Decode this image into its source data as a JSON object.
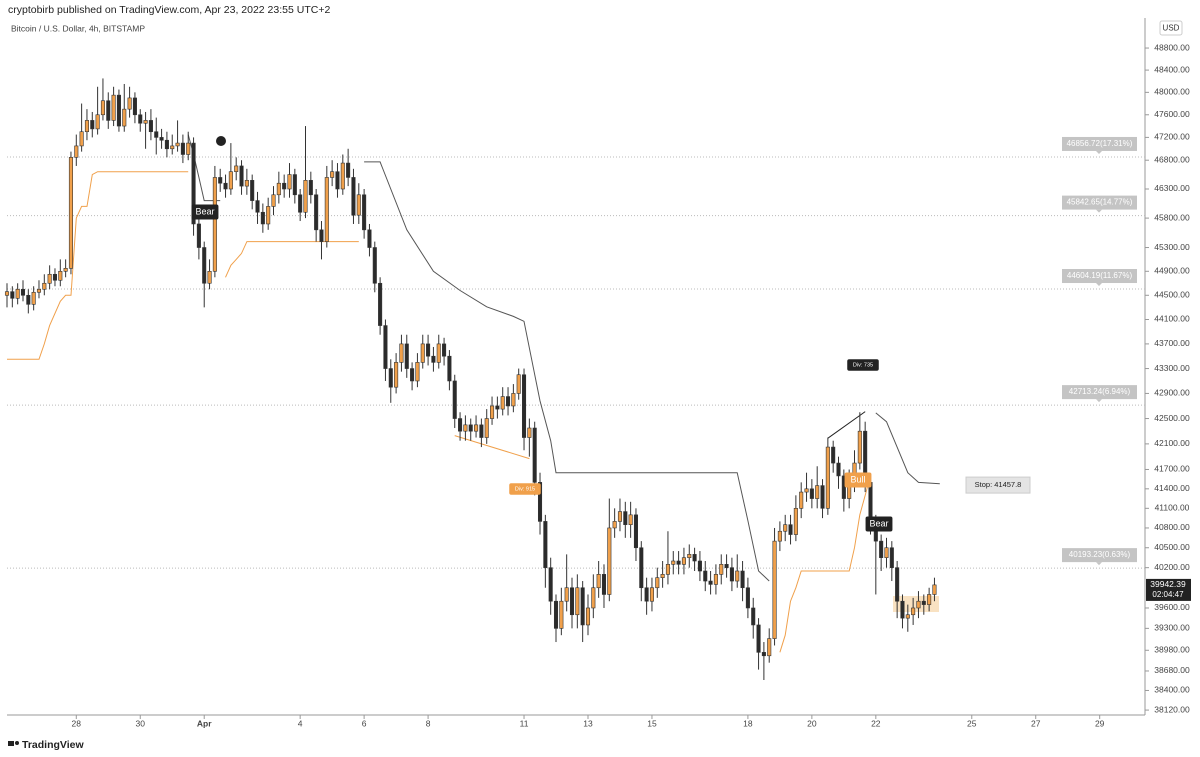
{
  "header": "cryptobirb published on TradingView.com, Apr 23, 2022 23:55 UTC+2",
  "footer": "TradingView",
  "chart_data": {
    "type": "candlestick",
    "title": "Bitcoin / U.S. Dollar, 4h, BITSTAMP",
    "currency": "USD",
    "up_color": "#f0a04b",
    "down_color": "#2b2b2b",
    "yscale": "log",
    "grid": false,
    "xlim": [
      0,
      213.5
    ],
    "xticks": [
      {
        "value": 13,
        "label": "28"
      },
      {
        "value": 25,
        "label": "30"
      },
      {
        "value": 37,
        "label": "Apr"
      },
      {
        "value": 55,
        "label": "4"
      },
      {
        "value": 67,
        "label": "6"
      },
      {
        "value": 79,
        "label": "8"
      },
      {
        "value": 97,
        "label": "11"
      },
      {
        "value": 109,
        "label": "13"
      },
      {
        "value": 121,
        "label": "15"
      },
      {
        "value": 139,
        "label": "18"
      },
      {
        "value": 151,
        "label": "20"
      },
      {
        "value": 163,
        "label": "22"
      },
      {
        "value": 181,
        "label": "25"
      },
      {
        "value": 193,
        "label": "27"
      },
      {
        "value": 205,
        "label": "29"
      }
    ],
    "ylim": [
      38050,
      49350
    ],
    "yticks": [
      {
        "value": 48800,
        "label": "48800.00"
      },
      {
        "value": 48400,
        "label": "48400.00"
      },
      {
        "value": 48000,
        "label": "48000.00"
      },
      {
        "value": 47600,
        "label": "47600.00"
      },
      {
        "value": 47200,
        "label": "47200.00"
      },
      {
        "value": 46800,
        "label": "46800.00"
      },
      {
        "value": 46300,
        "label": "46300.00"
      },
      {
        "value": 45800,
        "label": "45800.00"
      },
      {
        "value": 45300,
        "label": "45300.00"
      },
      {
        "value": 44900,
        "label": "44900.00"
      },
      {
        "value": 44500,
        "label": "44500.00"
      },
      {
        "value": 44100,
        "label": "44100.00"
      },
      {
        "value": 43700,
        "label": "43700.00"
      },
      {
        "value": 43300,
        "label": "43300.00"
      },
      {
        "value": 42900,
        "label": "42900.00"
      },
      {
        "value": 42500,
        "label": "42500.00"
      },
      {
        "value": 42100,
        "label": "42100.00"
      },
      {
        "value": 41700,
        "label": "41700.00"
      },
      {
        "value": 41400,
        "label": "41400.00"
      },
      {
        "value": 41100,
        "label": "41100.00"
      },
      {
        "value": 40800,
        "label": "40800.00"
      },
      {
        "value": 40500,
        "label": "40500.00"
      },
      {
        "value": 40200,
        "label": "40200.00"
      },
      {
        "value": 39600,
        "label": "39600.00"
      },
      {
        "value": 39300,
        "label": "39300.00"
      },
      {
        "value": 38980,
        "label": "38980.00"
      },
      {
        "value": 38680,
        "label": "38680.00"
      },
      {
        "value": 38400,
        "label": "38400.00"
      },
      {
        "value": 38120,
        "label": "38120.00"
      }
    ],
    "open": [
      44500,
      44560,
      44450,
      44600,
      44500,
      44350,
      44550,
      44600,
      44700,
      44850,
      44750,
      44900,
      44950,
      46850,
      47050,
      47300,
      47500,
      47350,
      47600,
      47850,
      47500,
      47950,
      47400,
      47700,
      47900,
      47600,
      47450,
      47500,
      47300,
      47200,
      47150,
      47000,
      47050,
      47100,
      46900,
      47100,
      45700,
      45300,
      44700,
      44900,
      46500,
      46400,
      46300,
      46600,
      46700,
      46350,
      46450,
      46100,
      45900,
      45700,
      46000,
      46200,
      46400,
      46300,
      46550,
      46200,
      45900,
      46450,
      46200,
      45600,
      45400,
      46500,
      46600,
      46300,
      46750,
      46500,
      45850,
      46200,
      45600,
      45300,
      44700,
      44000,
      43300,
      43000,
      43400,
      43700,
      43300,
      43100,
      43400,
      43700,
      43500,
      43400,
      43700,
      43500,
      43100,
      42500,
      42300,
      42400,
      42300,
      42400,
      42200,
      42500,
      42700,
      42650,
      42850,
      42700,
      42900,
      43200,
      42200,
      42350,
      41500,
      40900,
      40200,
      39700,
      39300,
      39700,
      39900,
      39500,
      39900,
      39350,
      39600,
      39900,
      40100,
      39800,
      40800,
      40900,
      41050,
      40850,
      41000,
      40500,
      39900,
      39700,
      39900,
      40050,
      40100,
      40250,
      40300,
      40250,
      40350,
      40400,
      40300,
      40150,
      40000,
      39950,
      40100,
      40250,
      40200,
      40000,
      40150,
      39900,
      39600,
      39350,
      38950,
      38900,
      39150,
      40600,
      40750,
      40850,
      40700,
      41100,
      41350,
      41400,
      41250,
      41450,
      41100,
      42050,
      41800,
      41600,
      41250,
      41500,
      41800,
      42300,
      41500,
      40900,
      40600,
      40350,
      40500,
      40200,
      39700,
      39450,
      39500,
      39600,
      39700,
      39650,
      39800
    ],
    "high": [
      44700,
      44650,
      44700,
      44750,
      44600,
      44650,
      44750,
      44850,
      45000,
      44950,
      45100,
      45100,
      46950,
      47250,
      47800,
      47700,
      47650,
      48100,
      48250,
      48000,
      48100,
      48050,
      48150,
      48100,
      48000,
      47700,
      47650,
      47700,
      47550,
      47350,
      47300,
      47250,
      47500,
      47250,
      47300,
      47200,
      45900,
      45400,
      45100,
      46700,
      46650,
      46550,
      47100,
      46850,
      46800,
      46650,
      46550,
      46250,
      46050,
      46150,
      46350,
      46600,
      46550,
      46750,
      46650,
      46300,
      47400,
      46600,
      46300,
      45750,
      46700,
      46800,
      46750,
      46900,
      47000,
      46650,
      46400,
      46300,
      45700,
      45400,
      44800,
      44100,
      43450,
      43550,
      43850,
      43850,
      43400,
      43550,
      43850,
      43850,
      43650,
      43850,
      43800,
      43600,
      43200,
      42600,
      42550,
      42500,
      42550,
      42500,
      42650,
      42850,
      42850,
      43000,
      43000,
      43050,
      43300,
      43300,
      42500,
      42450,
      41650,
      41000,
      40350,
      39800,
      39900,
      40400,
      40050,
      40100,
      40000,
      39800,
      40100,
      40300,
      40250,
      41250,
      41100,
      41250,
      41200,
      41200,
      41100,
      40600,
      40050,
      40050,
      40200,
      40300,
      40750,
      40450,
      40450,
      40500,
      40550,
      40500,
      40450,
      40300,
      40150,
      40250,
      40400,
      40400,
      40350,
      40400,
      40300,
      40050,
      39750,
      39450,
      39100,
      39300,
      40800,
      40900,
      41000,
      41000,
      41300,
      41500,
      41650,
      41550,
      41750,
      41550,
      42200,
      42150,
      41900,
      41700,
      41700,
      42000,
      42600,
      42450,
      41600,
      41000,
      40700,
      40650,
      40600,
      40300,
      39800,
      39650,
      39750,
      39850,
      39800,
      39900,
      40050
    ],
    "low": [
      44300,
      44300,
      44350,
      44400,
      44200,
      44250,
      44450,
      44500,
      44600,
      44650,
      44650,
      44800,
      44850,
      46700,
      46950,
      47150,
      47200,
      47250,
      47500,
      47350,
      47400,
      47300,
      47300,
      47550,
      47450,
      47300,
      47000,
      47150,
      46900,
      47000,
      46850,
      46900,
      46950,
      46750,
      46800,
      45500,
      45100,
      44300,
      44600,
      44800,
      46250,
      46150,
      46200,
      46450,
      46200,
      46200,
      45950,
      45700,
      45550,
      45600,
      45850,
      46050,
      46150,
      46150,
      46050,
      45750,
      45800,
      46050,
      45400,
      45100,
      45300,
      46350,
      46150,
      46200,
      46350,
      45700,
      45700,
      45450,
      45150,
      44550,
      43850,
      43100,
      42750,
      42900,
      43250,
      43150,
      42950,
      43000,
      43300,
      43350,
      43250,
      43300,
      43350,
      42950,
      42350,
      42150,
      42150,
      42150,
      42200,
      42050,
      42100,
      42400,
      42500,
      42550,
      42550,
      42600,
      42800,
      42000,
      41900,
      41300,
      40700,
      39900,
      39500,
      39100,
      39200,
      39550,
      39300,
      39300,
      39100,
      39200,
      39450,
      39750,
      39600,
      39700,
      40650,
      40750,
      40650,
      40650,
      40300,
      39700,
      39500,
      39550,
      39750,
      39900,
      39950,
      40100,
      40100,
      40100,
      40200,
      40150,
      40000,
      39850,
      39800,
      39800,
      39950,
      40050,
      39850,
      39900,
      39700,
      39450,
      39150,
      38700,
      38550,
      38800,
      39050,
      40450,
      40600,
      40550,
      40600,
      40950,
      41200,
      41100,
      41100,
      40950,
      41000,
      41650,
      41400,
      41050,
      41100,
      41350,
      41700,
      41350,
      40700,
      39800,
      40150,
      40200,
      40000,
      39450,
      39300,
      39250,
      39350,
      39450,
      39500,
      39550,
      39700
    ],
    "close": [
      44560,
      44450,
      44600,
      44500,
      44350,
      44550,
      44600,
      44700,
      44850,
      44750,
      44900,
      44950,
      46850,
      47050,
      47300,
      47500,
      47350,
      47600,
      47850,
      47500,
      47950,
      47400,
      47700,
      47900,
      47600,
      47450,
      47500,
      47300,
      47200,
      47150,
      47000,
      47050,
      47100,
      46900,
      47100,
      45700,
      45300,
      44700,
      44900,
      46500,
      46400,
      46300,
      46600,
      46700,
      46350,
      46450,
      46100,
      45900,
      45700,
      46000,
      46200,
      46400,
      46300,
      46550,
      46200,
      45900,
      46450,
      46200,
      45600,
      45400,
      46500,
      46600,
      46300,
      46750,
      46500,
      45850,
      46200,
      45600,
      45300,
      44700,
      44000,
      43300,
      43000,
      43400,
      43700,
      43300,
      43100,
      43400,
      43700,
      43500,
      43400,
      43700,
      43500,
      43100,
      42500,
      42300,
      42400,
      42300,
      42400,
      42200,
      42500,
      42700,
      42650,
      42850,
      42700,
      42900,
      43200,
      42200,
      42350,
      41500,
      40900,
      40200,
      39700,
      39300,
      39700,
      39900,
      39500,
      39900,
      39350,
      39600,
      39900,
      40100,
      39800,
      40800,
      40900,
      41050,
      40850,
      41000,
      40500,
      39900,
      39700,
      39900,
      40050,
      40100,
      40250,
      40300,
      40250,
      40350,
      40400,
      40300,
      40150,
      40000,
      39950,
      40100,
      40250,
      40200,
      40000,
      40150,
      39900,
      39600,
      39350,
      38950,
      38900,
      39150,
      40600,
      40750,
      40850,
      40700,
      41100,
      41350,
      41400,
      41250,
      41450,
      41100,
      42050,
      41800,
      41600,
      41250,
      41500,
      41800,
      42300,
      41500,
      40900,
      40600,
      40350,
      40500,
      40200,
      39700,
      39450,
      39500,
      39600,
      39700,
      39650,
      39800,
      39942.39
    ],
    "overlays": [
      {
        "color": "#f0a04b",
        "x": [
          0,
          6,
          7,
          8,
          10,
          11,
          12,
          13,
          14,
          15,
          16,
          17,
          34
        ],
        "values": [
          43450,
          43450,
          43700,
          44000,
          44400,
          44500,
          44500,
          45800,
          46000,
          46000,
          46550,
          46600,
          46600
        ]
      },
      {
        "color": "#f0a04b",
        "x": [
          41,
          42,
          43,
          44,
          45,
          66
        ],
        "values": [
          44800,
          45000,
          45100,
          45200,
          45400,
          45400
        ]
      },
      {
        "color": "#f0a04b",
        "x": [
          84,
          98
        ],
        "values": [
          42230,
          41870
        ]
      },
      {
        "color": "#f0a04b",
        "x": [
          145,
          146,
          147,
          148,
          149,
          158,
          159,
          160,
          161,
          162
        ],
        "values": [
          38950,
          39200,
          39700,
          39900,
          40150,
          40150,
          40500,
          41000,
          41300,
          41600
        ]
      },
      {
        "color": "#555555",
        "x": [
          34,
          35,
          36,
          37,
          40
        ],
        "values": [
          47250,
          46900,
          46500,
          46100,
          46100
        ]
      },
      {
        "color": "#555555",
        "x": [
          67,
          70,
          75,
          80,
          85,
          90,
          95,
          97,
          100,
          102,
          103,
          137,
          139,
          141,
          143
        ],
        "values": [
          46770,
          46770,
          45600,
          44900,
          44580,
          44310,
          44150,
          44070,
          42780,
          42150,
          41650,
          41650,
          40910,
          40150,
          40000
        ]
      },
      {
        "color": "#555555",
        "x": [
          163,
          165,
          167,
          169,
          171,
          175
        ],
        "values": [
          42590,
          42450,
          42050,
          41650,
          41500,
          41480
        ]
      },
      {
        "color": "#222222",
        "x": [
          154,
          161
        ],
        "values": [
          42190,
          42610
        ]
      }
    ],
    "levels": [
      {
        "value": 46856.72,
        "label": "46856.72(17.31%)"
      },
      {
        "value": 45842.65,
        "label": "45842.65(14.77%)"
      },
      {
        "value": 44604.19,
        "label": "44604.19(11.67%)"
      },
      {
        "value": 42713.24,
        "label": "42713.24(6.94%)"
      },
      {
        "value": 40193.23,
        "label": "40193.23(0.63%)"
      }
    ],
    "stop": {
      "value": 41457.8,
      "label": "Stop: 41457.8"
    },
    "last_price": 39942.39,
    "countdown": "02:04:47",
    "annotations": [
      "Bear",
      "Bear",
      "Bull",
      "Div: 735",
      "Div: 915"
    ]
  }
}
